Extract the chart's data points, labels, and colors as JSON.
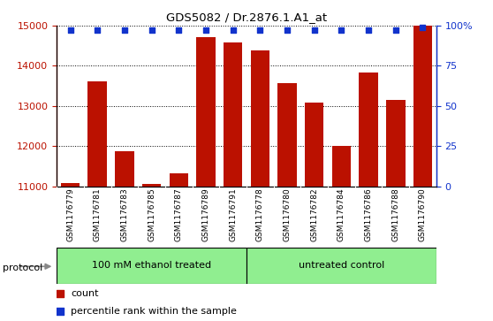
{
  "title": "GDS5082 / Dr.2876.1.A1_at",
  "samples": [
    "GSM1176779",
    "GSM1176781",
    "GSM1176783",
    "GSM1176785",
    "GSM1176787",
    "GSM1176789",
    "GSM1176791",
    "GSM1176778",
    "GSM1176780",
    "GSM1176782",
    "GSM1176784",
    "GSM1176786",
    "GSM1176788",
    "GSM1176790"
  ],
  "counts": [
    11070,
    13620,
    11870,
    11060,
    11310,
    14720,
    14580,
    14380,
    13570,
    13080,
    12010,
    13840,
    13160,
    15000
  ],
  "percentiles": [
    97,
    97,
    97,
    97,
    97,
    97,
    97,
    97,
    97,
    97,
    97,
    97,
    97,
    99
  ],
  "groups": [
    "100 mM ethanol treated",
    "100 mM ethanol treated",
    "100 mM ethanol treated",
    "100 mM ethanol treated",
    "100 mM ethanol treated",
    "100 mM ethanol treated",
    "100 mM ethanol treated",
    "untreated control",
    "untreated control",
    "untreated control",
    "untreated control",
    "untreated control",
    "untreated control",
    "untreated control"
  ],
  "bar_color": "#BB1100",
  "percentile_color": "#1133CC",
  "ylim_left": [
    11000,
    15000
  ],
  "ylim_right": [
    0,
    100
  ],
  "right_ticks": [
    0,
    25,
    50,
    75,
    100
  ],
  "right_tick_labels": [
    "0",
    "25",
    "50",
    "75",
    "100%"
  ],
  "left_ticks": [
    11000,
    12000,
    13000,
    14000,
    15000
  ],
  "left_color": "#BB1100",
  "right_color": "#1133CC",
  "grid_color": "black",
  "xtick_bg": "#CCCCCC",
  "protocol_bg": "#90EE90",
  "protocol_label": "protocol",
  "group1_label": "100 mM ethanol treated",
  "group2_label": "untreated control",
  "group1_count": 7,
  "group2_count": 7,
  "legend_count_label": "count",
  "legend_percentile_label": "percentile rank within the sample"
}
